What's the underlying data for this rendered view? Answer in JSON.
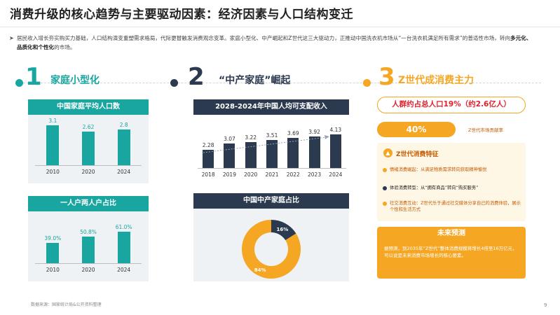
{
  "page": {
    "title": "消费升级的核心趋势与主要驱动因素：经济因素与人口结构变迁",
    "intro_plain": "居民收入增长夯实购买力基础，人口结构演变重塑需求格局，代际更替触发消费观念变革。家庭小型化、中产崛起和Z世代这三大驱动力，正推动中国洗衣机市场从“一台洗衣机满足所有需求”的普适性市场，转向",
    "intro_bold": "多元化、品质化和个性化",
    "intro_end": "的市场。",
    "footnote": "数据来源：国家统计局&公开资料整理",
    "page_number": "9"
  },
  "colors": {
    "teal": "#1aa6a0",
    "navy": "#2b3a4e",
    "orange": "#f5a623",
    "red": "#e0202a"
  },
  "section1": {
    "number": "1",
    "title": "家庭小型化",
    "chart1_title": "中国家庭平均人口数",
    "chart2_title": "一人户两人户占比"
  },
  "section2": {
    "number": "2",
    "title": "“中产家庭”崛起",
    "chart1_title": "2028-2024年中国人均可支配收入",
    "chart2_title": "中国中产家庭占比"
  },
  "section3": {
    "number": "3",
    "title": "Z世代成消费主力",
    "tag": "人群约占总人口19%（约2.6亿人）",
    "pct": "40%",
    "pct_label": "Z世代市场贡献率",
    "features_title": "Z世代消费特征",
    "features": [
      "情绪消费崛起：从满足物质需求转向获取精神愉悦",
      "体验消费转型：从“拥有商品”转向“购买服务”",
      "社交消费互动：Z世代乐于通过社交媒体分享自己的消费体验，展示个性和生活方式"
    ],
    "forecast_title": "未来预测",
    "forecast_text": "据预测，到2035年“Z世代”整体消费规模将增长4倍至16万亿元，可以说是未来消费市场增长的核心要素。"
  },
  "chart_data": [
    {
      "type": "bar",
      "title": "中国家庭平均人口数",
      "categories": [
        "2010",
        "2020",
        "2024"
      ],
      "values": [
        3.1,
        2.62,
        2.8
      ],
      "value_labels": [
        "3.1",
        "2.62",
        "2.8"
      ],
      "ylim": [
        0,
        3.5
      ]
    },
    {
      "type": "bar",
      "title": "一人户两人户占比",
      "categories": [
        "2010",
        "2020",
        "2024"
      ],
      "values": [
        39.0,
        50.8,
        61.0
      ],
      "value_labels": [
        "39.0%",
        "50.8%",
        "61.0%"
      ],
      "ylim": [
        0,
        70
      ]
    },
    {
      "type": "bar",
      "title": "2028-2024年中国人均可支配收入",
      "categories": [
        "2018",
        "2019",
        "2020",
        "2021",
        "2022",
        "2023",
        "2024"
      ],
      "values": [
        2.28,
        3.07,
        3.22,
        3.51,
        3.69,
        3.92,
        4.13
      ],
      "value_labels": [
        "2.28",
        "3.07",
        "3.22",
        "3.51",
        "3.69",
        "3.92",
        "4.13"
      ],
      "ylim": [
        0,
        5.2
      ]
    },
    {
      "type": "pie",
      "title": "中国中产家庭占比",
      "slices": [
        {
          "label": "16%",
          "value": 16,
          "color": "#2b3a4e"
        },
        {
          "label": "84%",
          "value": 84,
          "color": "#f5a623"
        }
      ]
    }
  ]
}
